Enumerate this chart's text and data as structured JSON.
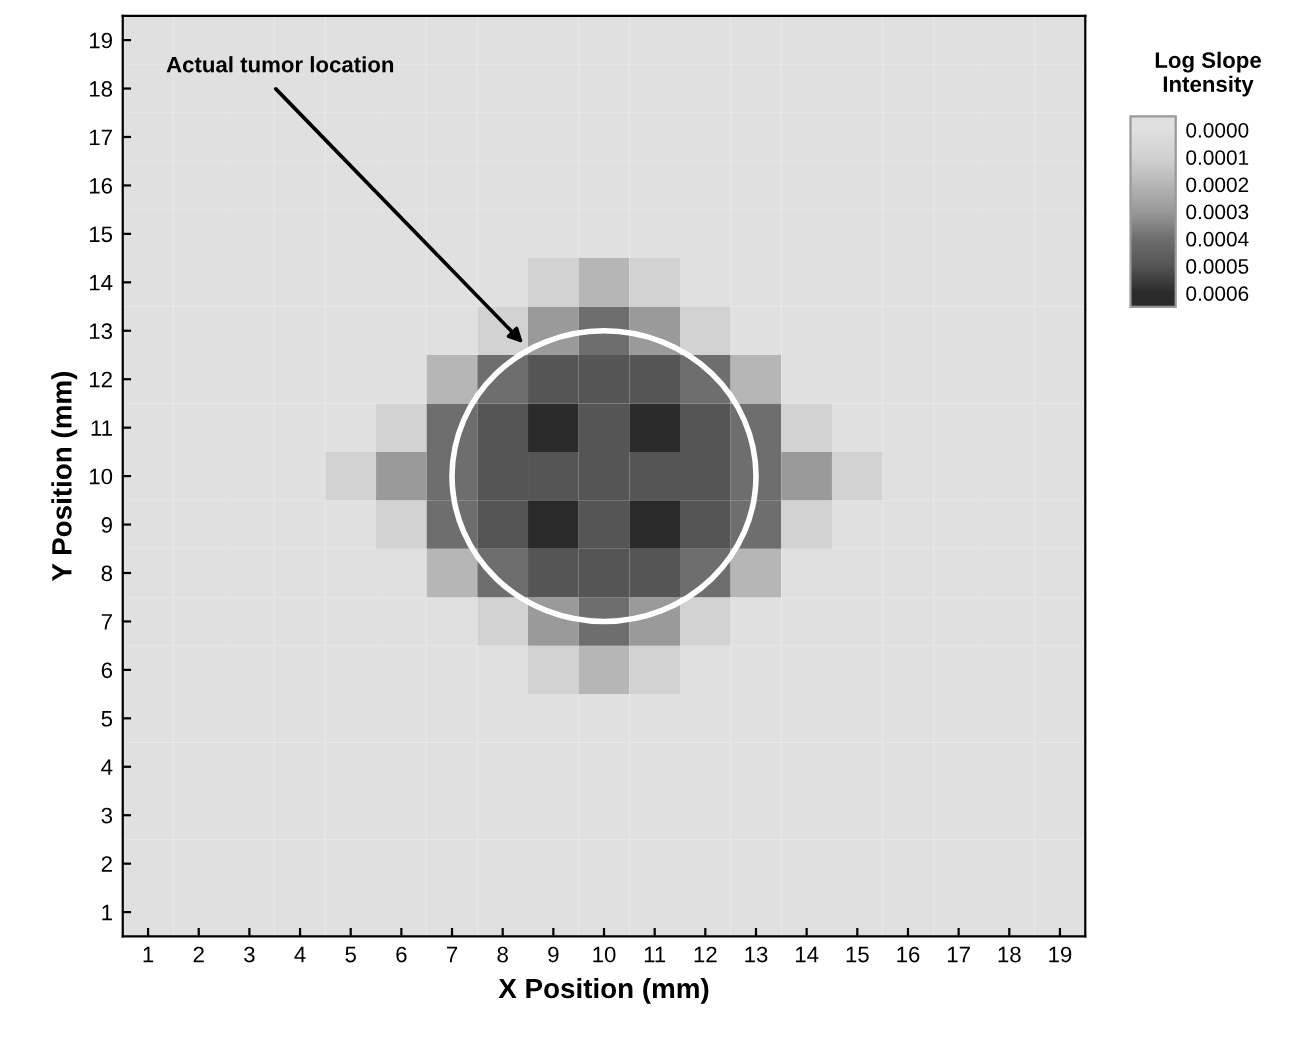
{
  "chart_data": {
    "type": "heatmap",
    "xlabel": "X Position (mm)",
    "ylabel": "Y Position (mm)",
    "clabel": "Log Slope\nIntensity",
    "clim": [
      -5e-05,
      0.00065
    ],
    "annotations": [
      "Actual tumor location"
    ],
    "categories": [
      "1",
      "2",
      "3",
      "4",
      "5",
      "6",
      "7",
      "8",
      "9",
      "10",
      "11",
      "12",
      "13",
      "14",
      "15",
      "16",
      "17",
      "18",
      "19"
    ],
    "y_categories": [
      "19",
      "18",
      "17",
      "16",
      "15",
      "14",
      "13",
      "12",
      "11",
      "10",
      "9",
      "8",
      "7",
      "6",
      "5",
      "4",
      "3",
      "2",
      "1"
    ],
    "cticks": [
      {
        "value": 0,
        "label": "0.0000"
      },
      {
        "value": 0.0001,
        "label": "0.0001"
      },
      {
        "value": 0.0002,
        "label": "0.0002"
      },
      {
        "value": 0.0003,
        "label": "0.0003"
      },
      {
        "value": 0.0004,
        "label": "0.0004"
      },
      {
        "value": 0.0005,
        "label": "0.0005"
      },
      {
        "value": 0.0006,
        "label": "0.0006"
      }
    ],
    "colors": [
      "#e0e0e0",
      "#d2d2d2",
      "#b6b6b6",
      "#9a9a9a",
      "#6e6e6e",
      "#555555",
      "#2a2a2a"
    ],
    "cells": [
      [
        0,
        0,
        0,
        0,
        0,
        0,
        0,
        0,
        0,
        0,
        0,
        0,
        0,
        0,
        0,
        0,
        0,
        0,
        0
      ],
      [
        0,
        0,
        0,
        0,
        0,
        0,
        0,
        0,
        0,
        0,
        0,
        0,
        0,
        0,
        0,
        0,
        0,
        0,
        0
      ],
      [
        0,
        0,
        0,
        0,
        0,
        0,
        0,
        0,
        0,
        0,
        0,
        0,
        0,
        0,
        0,
        0,
        0,
        0,
        0
      ],
      [
        0,
        0,
        0,
        0,
        0,
        0,
        0,
        0,
        0,
        0,
        0,
        0,
        0,
        0,
        0,
        0,
        0,
        0,
        0
      ],
      [
        0,
        0,
        0,
        0,
        0,
        0,
        0,
        0,
        0,
        0,
        0,
        0,
        0,
        0,
        0,
        0,
        0,
        0,
        0
      ],
      [
        0,
        0,
        0,
        0,
        0,
        0,
        0,
        0,
        0.0001,
        0.0002,
        0.0001,
        0,
        0,
        0,
        0,
        0,
        0,
        0,
        0
      ],
      [
        0,
        0,
        0,
        0,
        0,
        0,
        0,
        0.0001,
        0.0003,
        0.0004,
        0.0003,
        0.0001,
        0,
        0,
        0,
        0,
        0,
        0,
        0
      ],
      [
        0,
        0,
        0,
        0,
        0,
        0,
        0.0002,
        0.0004,
        0.0005,
        0.0005,
        0.0005,
        0.0004,
        0.0002,
        0,
        0,
        0,
        0,
        0,
        0
      ],
      [
        0,
        0,
        0,
        0,
        0,
        0.0001,
        0.0004,
        0.0005,
        0.0006,
        0.0005,
        0.0006,
        0.0005,
        0.0004,
        0.0001,
        0,
        0,
        0,
        0,
        0
      ],
      [
        0,
        0,
        0,
        0,
        0.0001,
        0.0003,
        0.0004,
        0.0005,
        0.0005,
        0.0005,
        0.0005,
        0.0005,
        0.0004,
        0.0003,
        0.0001,
        0,
        0,
        0,
        0
      ],
      [
        0,
        0,
        0,
        0,
        0,
        0.0001,
        0.0004,
        0.0005,
        0.0006,
        0.0005,
        0.0006,
        0.0005,
        0.0004,
        0.0001,
        0,
        0,
        0,
        0,
        0
      ],
      [
        0,
        0,
        0,
        0,
        0,
        0,
        0.0002,
        0.0004,
        0.0005,
        0.0005,
        0.0005,
        0.0004,
        0.0002,
        0,
        0,
        0,
        0,
        0,
        0
      ],
      [
        0,
        0,
        0,
        0,
        0,
        0,
        0,
        0.0001,
        0.0003,
        0.0004,
        0.0003,
        0.0001,
        0,
        0,
        0,
        0,
        0,
        0,
        0
      ],
      [
        0,
        0,
        0,
        0,
        0,
        0,
        0,
        0,
        0.0001,
        0.0002,
        0.0001,
        0,
        0,
        0,
        0,
        0,
        0,
        0,
        0
      ],
      [
        0,
        0,
        0,
        0,
        0,
        0,
        0,
        0,
        0,
        0,
        0,
        0,
        0,
        0,
        0,
        0,
        0,
        0,
        0
      ],
      [
        0,
        0,
        0,
        0,
        0,
        0,
        0,
        0,
        0,
        0,
        0,
        0,
        0,
        0,
        0,
        0,
        0,
        0,
        0
      ],
      [
        0,
        0,
        0,
        0,
        0,
        0,
        0,
        0,
        0,
        0,
        0,
        0,
        0,
        0,
        0,
        0,
        0,
        0,
        0
      ],
      [
        0,
        0,
        0,
        0,
        0,
        0,
        0,
        0,
        0,
        0,
        0,
        0,
        0,
        0,
        0,
        0,
        0,
        0,
        0
      ],
      [
        0,
        0,
        0,
        0,
        0,
        0,
        0,
        0,
        0,
        0,
        0,
        0,
        0,
        0,
        0,
        0,
        0,
        0,
        0
      ]
    ]
  }
}
